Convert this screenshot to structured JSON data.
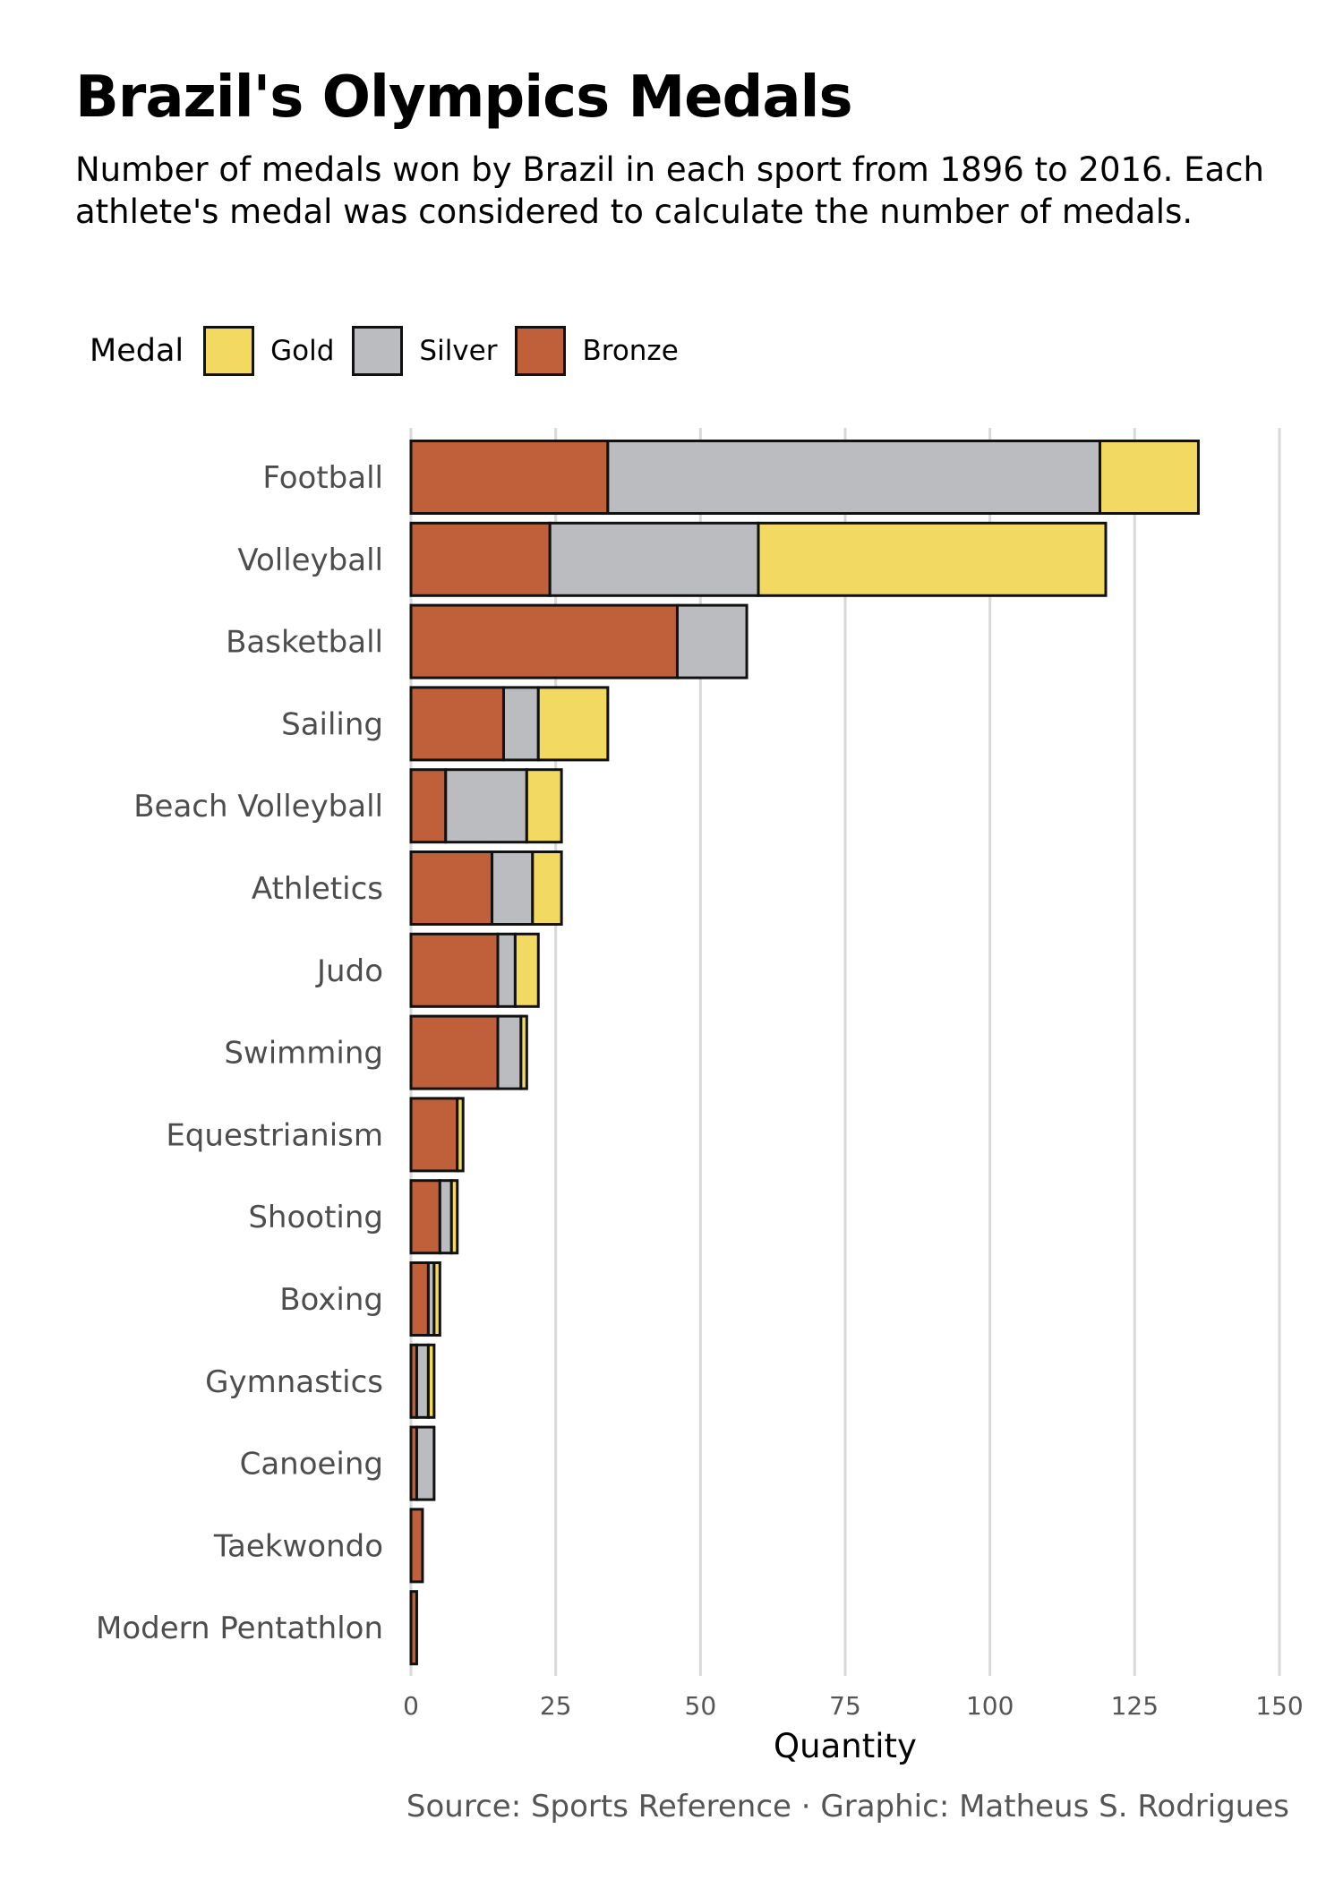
{
  "title": "Brazil's Olympics Medals",
  "subtitle": "Number of medals won by Brazil in each sport from 1896 to 2016. Each athlete's medal was considered to calculate the number of medals.",
  "caption": "Source: Sports Reference · Graphic: Matheus S. Rodrigues",
  "legend": {
    "title": "Medal",
    "items": [
      {
        "label": "Gold",
        "color": "#f2d961"
      },
      {
        "label": "Silver",
        "color": "#babcbf"
      },
      {
        "label": "Bronze",
        "color": "#c0603a"
      }
    ]
  },
  "chart_data": {
    "type": "bar",
    "orientation": "horizontal",
    "stacked": true,
    "title": "Brazil's Olympics Medals",
    "xlabel": "Quantity",
    "ylabel": "",
    "xlim": [
      0,
      150
    ],
    "xticks": [
      0,
      25,
      50,
      75,
      100,
      125,
      150
    ],
    "grid": "vertical",
    "legend_position": "top",
    "categories": [
      "Football",
      "Volleyball",
      "Basketball",
      "Sailing",
      "Beach Volleyball",
      "Athletics",
      "Judo",
      "Swimming",
      "Equestrianism",
      "Shooting",
      "Boxing",
      "Gymnastics",
      "Canoeing",
      "Taekwondo",
      "Modern Pentathlon"
    ],
    "series": [
      {
        "name": "Bronze",
        "color": "#c0603a",
        "values": [
          34,
          24,
          46,
          16,
          6,
          14,
          15,
          15,
          8,
          5,
          3,
          1,
          1,
          2,
          1
        ]
      },
      {
        "name": "Silver",
        "color": "#babcbf",
        "values": [
          85,
          36,
          12,
          6,
          14,
          7,
          3,
          4,
          0,
          2,
          1,
          2,
          3,
          0,
          0
        ]
      },
      {
        "name": "Gold",
        "color": "#f2d961",
        "values": [
          17,
          60,
          0,
          12,
          6,
          5,
          4,
          1,
          1,
          1,
          1,
          1,
          0,
          0,
          0
        ]
      }
    ]
  }
}
